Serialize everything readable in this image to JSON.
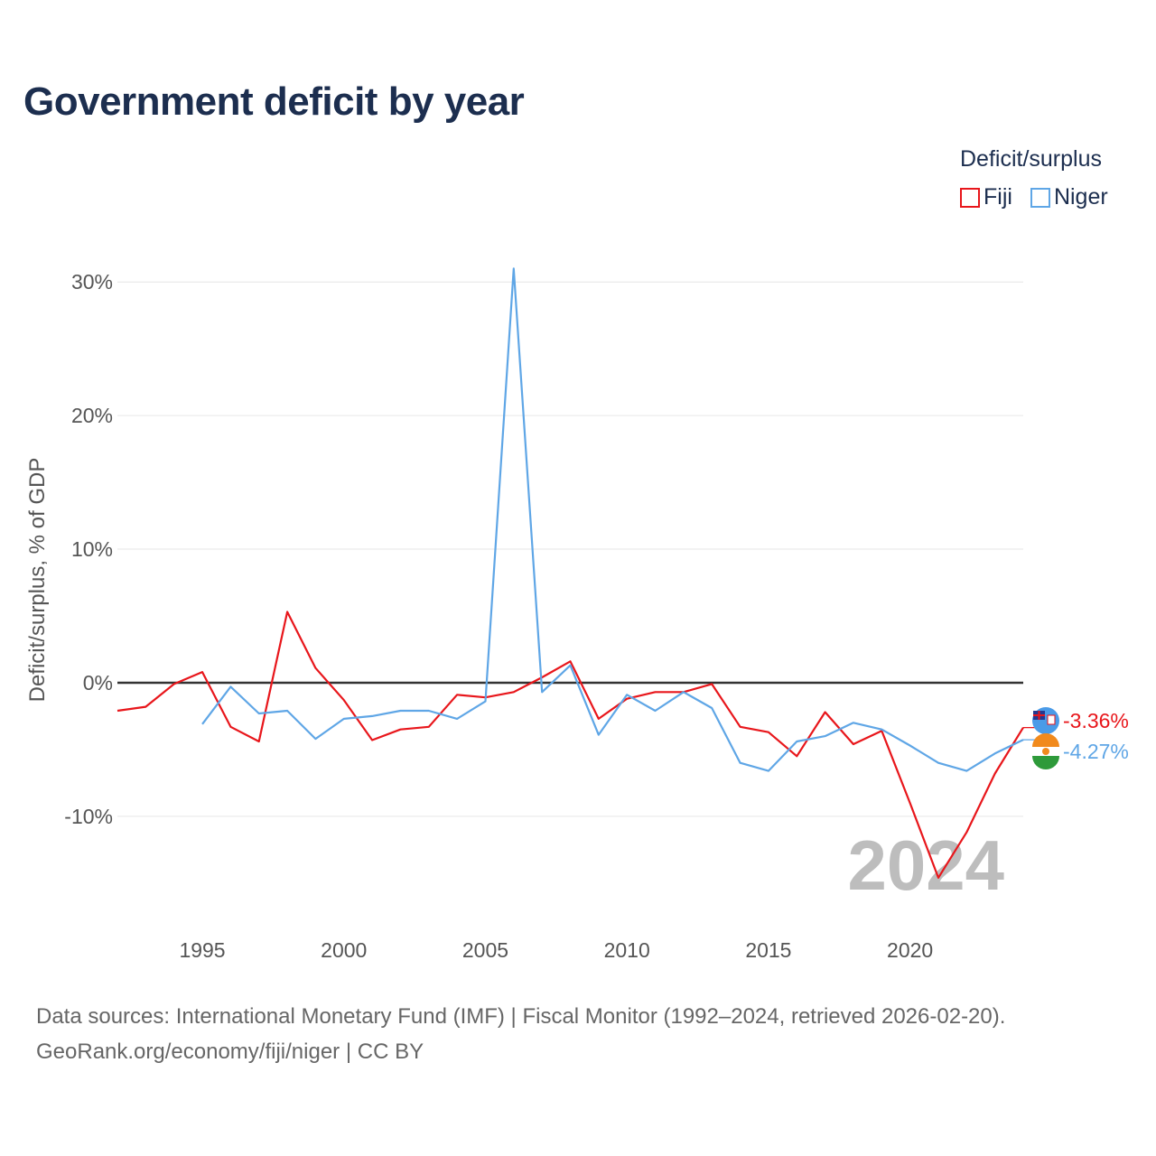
{
  "title": "Government deficit by year",
  "legend": {
    "title": "Deficit/surplus",
    "items": [
      {
        "name": "Fiji",
        "color": "#e8161b"
      },
      {
        "name": "Niger",
        "color": "#5fa6e6"
      }
    ]
  },
  "source": {
    "line1": "Data sources: International Monetary Fund (IMF) | Fiscal Monitor (1992–2024, retrieved 2026-02-20).",
    "line2": "GeoRank.org/economy/fiji/niger | CC BY"
  },
  "chart_data": {
    "type": "line",
    "title": "Government deficit by year",
    "xlabel": "",
    "ylabel": "Deficit/surplus, % of GDP",
    "year_label": "2024",
    "xlim": [
      1992,
      2024
    ],
    "ylim": [
      -16.5,
      31.5
    ],
    "xticks": [
      1995,
      2000,
      2005,
      2010,
      2015,
      2020
    ],
    "yticks": [
      -10,
      0,
      10,
      20,
      30
    ],
    "ytick_labels": [
      "-10%",
      "0%",
      "10%",
      "20%",
      "30%"
    ],
    "grid": true,
    "zero_line": true,
    "legend_position": "top-right",
    "series": [
      {
        "name": "Fiji",
        "color": "#e8161b",
        "end_label": "-3.36%",
        "x": [
          1992,
          1993,
          1994,
          1995,
          1996,
          1997,
          1998,
          1999,
          2000,
          2001,
          2002,
          2003,
          2004,
          2005,
          2006,
          2007,
          2008,
          2009,
          2010,
          2011,
          2012,
          2013,
          2014,
          2015,
          2016,
          2017,
          2018,
          2019,
          2020,
          2021,
          2022,
          2023,
          2024
        ],
        "values": [
          -2.1,
          -1.8,
          -0.1,
          0.8,
          -3.3,
          -4.4,
          5.3,
          1.1,
          -1.3,
          -4.3,
          -3.5,
          -3.3,
          -0.9,
          -1.1,
          -0.7,
          0.4,
          1.6,
          -2.7,
          -1.2,
          -0.7,
          -0.7,
          -0.1,
          -3.3,
          -3.7,
          -5.5,
          -2.2,
          -4.6,
          -3.6,
          -9.0,
          -14.6,
          -11.2,
          -6.8,
          -3.36
        ]
      },
      {
        "name": "Niger",
        "color": "#5fa6e6",
        "end_label": "-4.27%",
        "x": [
          1995,
          1996,
          1997,
          1998,
          1999,
          2000,
          2001,
          2002,
          2003,
          2004,
          2005,
          2006,
          2007,
          2008,
          2009,
          2010,
          2011,
          2012,
          2013,
          2014,
          2015,
          2016,
          2017,
          2018,
          2019,
          2020,
          2021,
          2022,
          2023,
          2024
        ],
        "values": [
          -3.1,
          -0.3,
          -2.3,
          -2.1,
          -4.2,
          -2.7,
          -2.5,
          -2.1,
          -2.1,
          -2.7,
          -1.4,
          31.0,
          -0.7,
          1.3,
          -3.9,
          -0.9,
          -2.1,
          -0.7,
          -1.9,
          -6.0,
          -6.6,
          -4.4,
          -4.0,
          -3.0,
          -3.5,
          -4.7,
          -6.0,
          -6.6,
          -5.3,
          -4.27
        ]
      }
    ]
  }
}
